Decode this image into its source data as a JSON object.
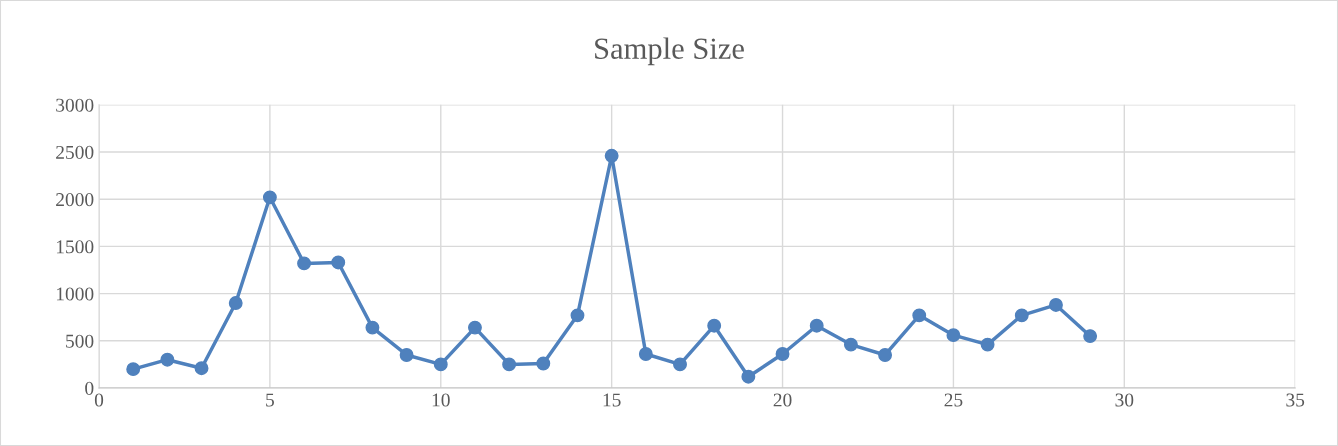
{
  "chart_data": {
    "type": "line",
    "title": "Sample Size",
    "x": [
      1,
      2,
      3,
      4,
      5,
      6,
      7,
      8,
      9,
      10,
      11,
      12,
      13,
      14,
      15,
      16,
      17,
      18,
      19,
      20,
      21,
      22,
      23,
      24,
      25,
      26,
      27,
      28,
      29
    ],
    "series": [
      {
        "color": "#4f81bd",
        "values": [
          200,
          300,
          210,
          900,
          2020,
          1320,
          1330,
          640,
          350,
          250,
          640,
          250,
          260,
          770,
          2460,
          360,
          250,
          660,
          120,
          360,
          660,
          460,
          350,
          770,
          560,
          460,
          770,
          880,
          550
        ]
      }
    ],
    "xlim": [
      0,
      35
    ],
    "xticks": [
      0,
      5,
      10,
      15,
      20,
      25,
      30,
      35
    ],
    "ylim": [
      0,
      3000
    ],
    "yticks": [
      0,
      500,
      1000,
      1500,
      2000,
      2500,
      3000
    ],
    "grid": true,
    "marker": "circle",
    "line_style": "solid"
  }
}
